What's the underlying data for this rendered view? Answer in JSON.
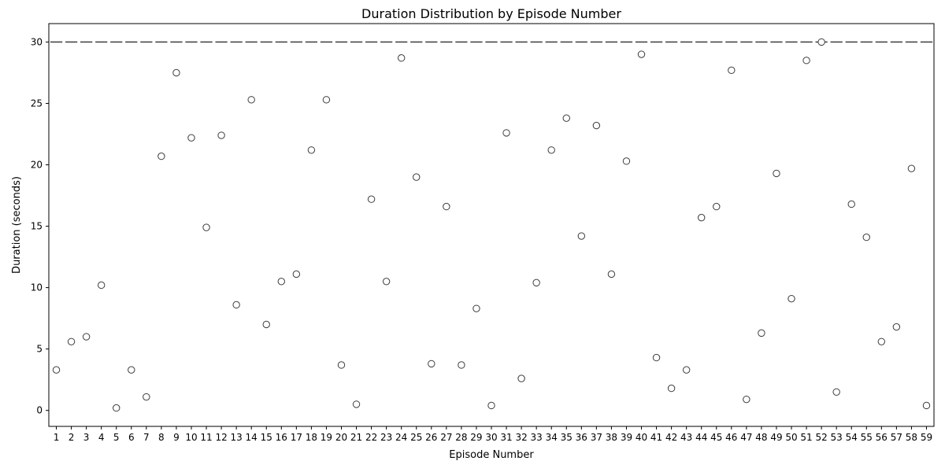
{
  "chart_data": {
    "type": "box",
    "title": "Duration Distribution by Episode Number",
    "xlabel": "Episode Number",
    "ylabel": "Duration (seconds)",
    "ylim": [
      -1.3,
      31.5
    ],
    "yticks": [
      0,
      5,
      10,
      15,
      20,
      25,
      30
    ],
    "grid": false,
    "legend": "none",
    "colors": {
      "box_line": "#3d3d3d",
      "marker_edge": "#3d3d3d",
      "marker_fill": "#ffffff"
    },
    "box_median": 30,
    "categories": [
      "1",
      "2",
      "3",
      "4",
      "5",
      "6",
      "7",
      "8",
      "9",
      "10",
      "11",
      "12",
      "13",
      "14",
      "15",
      "16",
      "17",
      "18",
      "19",
      "20",
      "21",
      "22",
      "23",
      "24",
      "25",
      "26",
      "27",
      "28",
      "29",
      "30",
      "31",
      "32",
      "33",
      "34",
      "35",
      "36",
      "37",
      "38",
      "39",
      "40",
      "41",
      "42",
      "43",
      "44",
      "45",
      "46",
      "47",
      "48",
      "49",
      "50",
      "51",
      "52",
      "53",
      "54",
      "55",
      "56",
      "57",
      "58",
      "59"
    ],
    "outliers": [
      3.3,
      5.6,
      6.0,
      10.2,
      0.2,
      3.3,
      1.1,
      20.7,
      27.5,
      22.2,
      14.9,
      22.4,
      8.6,
      25.3,
      7.0,
      10.5,
      11.1,
      21.2,
      25.3,
      3.7,
      0.5,
      17.2,
      10.5,
      28.7,
      19.0,
      3.8,
      16.6,
      3.7,
      8.3,
      0.4,
      22.6,
      2.6,
      10.4,
      21.2,
      23.8,
      14.2,
      23.2,
      11.1,
      20.3,
      29.0,
      4.3,
      1.8,
      3.3,
      15.7,
      16.6,
      27.7,
      0.9,
      6.3,
      19.3,
      9.1,
      28.5,
      30.0,
      1.5,
      16.8,
      14.1,
      5.6,
      6.8,
      19.7,
      0.4
    ]
  }
}
